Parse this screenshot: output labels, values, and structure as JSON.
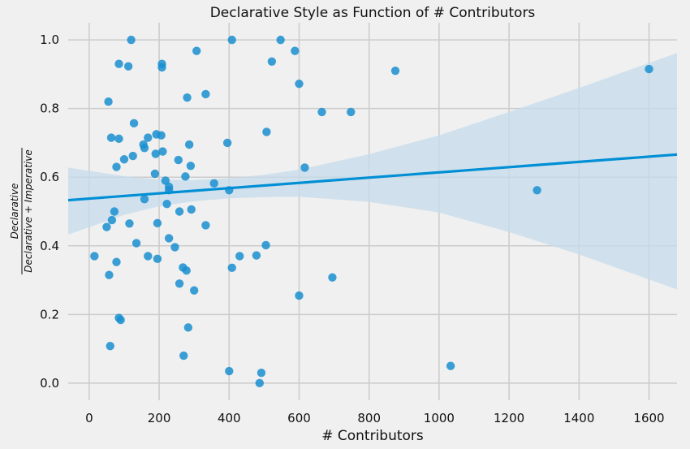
{
  "chart_data": {
    "type": "scatter",
    "title": "Declarative Style as Function of # Contributors",
    "xlabel": "# Contributors",
    "ylabel_numerator": "Declarative",
    "ylabel_denominator": "Declarative + Imperative",
    "xlim": [
      -60,
      1680
    ],
    "ylim": [
      -0.05,
      1.05
    ],
    "xticks": [
      0,
      200,
      400,
      600,
      800,
      1000,
      1200,
      1400,
      1600
    ],
    "yticks": [
      0.0,
      0.2,
      0.4,
      0.6,
      0.8,
      1.0
    ],
    "xtick_labels": [
      "0",
      "200",
      "400",
      "600",
      "800",
      "1000",
      "1200",
      "1400",
      "1600"
    ],
    "ytick_labels": [
      "0.0",
      "0.2",
      "0.4",
      "0.6",
      "0.8",
      "1.0"
    ],
    "grid": true,
    "colors": {
      "points": "#1a8fd0",
      "line": "#008fd5",
      "band": "#c5dcec",
      "background": "#f0f0f0",
      "grid": "#cbcbcb"
    },
    "points": [
      [
        120,
        1.0
      ],
      [
        408,
        1.0
      ],
      [
        547,
        1.0
      ],
      [
        307,
        0.968
      ],
      [
        588,
        0.968
      ],
      [
        522,
        0.937
      ],
      [
        85,
        0.93
      ],
      [
        208,
        0.93
      ],
      [
        112,
        0.923
      ],
      [
        208,
        0.92
      ],
      [
        875,
        0.91
      ],
      [
        1600,
        0.915
      ],
      [
        600,
        0.872
      ],
      [
        333,
        0.842
      ],
      [
        280,
        0.832
      ],
      [
        55,
        0.82
      ],
      [
        665,
        0.79
      ],
      [
        748,
        0.79
      ],
      [
        128,
        0.757
      ],
      [
        507,
        0.732
      ],
      [
        192,
        0.725
      ],
      [
        206,
        0.722
      ],
      [
        168,
        0.715
      ],
      [
        63,
        0.715
      ],
      [
        85,
        0.712
      ],
      [
        155,
        0.695
      ],
      [
        286,
        0.695
      ],
      [
        395,
        0.7
      ],
      [
        158,
        0.685
      ],
      [
        210,
        0.675
      ],
      [
        190,
        0.668
      ],
      [
        125,
        0.662
      ],
      [
        100,
        0.652
      ],
      [
        255,
        0.65
      ],
      [
        290,
        0.633
      ],
      [
        78,
        0.63
      ],
      [
        616,
        0.628
      ],
      [
        188,
        0.61
      ],
      [
        275,
        0.602
      ],
      [
        218,
        0.59
      ],
      [
        357,
        0.582
      ],
      [
        228,
        0.572
      ],
      [
        228,
        0.562
      ],
      [
        400,
        0.562
      ],
      [
        1280,
        0.562
      ],
      [
        158,
        0.536
      ],
      [
        222,
        0.522
      ],
      [
        292,
        0.506
      ],
      [
        258,
        0.5
      ],
      [
        72,
        0.5
      ],
      [
        65,
        0.475
      ],
      [
        195,
        0.466
      ],
      [
        115,
        0.465
      ],
      [
        333,
        0.46
      ],
      [
        50,
        0.455
      ],
      [
        228,
        0.422
      ],
      [
        135,
        0.408
      ],
      [
        505,
        0.402
      ],
      [
        245,
        0.396
      ],
      [
        15,
        0.37
      ],
      [
        168,
        0.37
      ],
      [
        430,
        0.37
      ],
      [
        478,
        0.372
      ],
      [
        195,
        0.362
      ],
      [
        78,
        0.353
      ],
      [
        408,
        0.336
      ],
      [
        268,
        0.337
      ],
      [
        278,
        0.328
      ],
      [
        57,
        0.315
      ],
      [
        695,
        0.308
      ],
      [
        258,
        0.29
      ],
      [
        300,
        0.27
      ],
      [
        600,
        0.255
      ],
      [
        85,
        0.19
      ],
      [
        90,
        0.184
      ],
      [
        283,
        0.162
      ],
      [
        60,
        0.108
      ],
      [
        270,
        0.08
      ],
      [
        1033,
        0.05
      ],
      [
        400,
        0.035
      ],
      [
        492,
        0.03
      ],
      [
        487,
        0.0
      ]
    ],
    "regression": {
      "x": [
        -60,
        1680
      ],
      "y": [
        0.533,
        0.666
      ]
    },
    "confidence_band": {
      "x": [
        -60,
        100,
        200,
        300,
        400,
        500,
        600,
        800,
        1000,
        1200,
        1400,
        1680
      ],
      "upper": [
        0.628,
        0.603,
        0.593,
        0.592,
        0.597,
        0.607,
        0.622,
        0.667,
        0.722,
        0.79,
        0.86,
        0.962
      ],
      "lower": [
        0.433,
        0.49,
        0.515,
        0.53,
        0.538,
        0.542,
        0.543,
        0.528,
        0.497,
        0.44,
        0.375,
        0.273
      ]
    }
  }
}
